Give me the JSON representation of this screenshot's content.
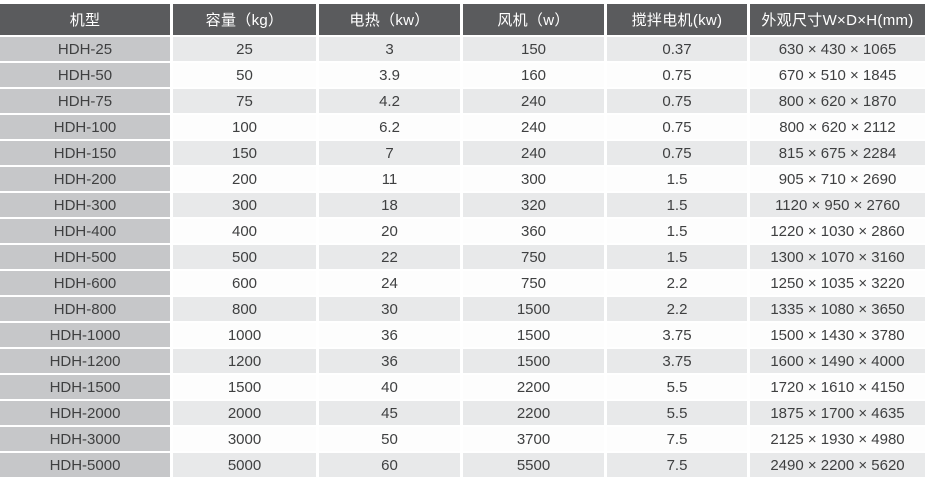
{
  "colors": {
    "header_bg": "#5a5b5d",
    "header_text": "#ffffff",
    "model_col_bg": "#c6c7c9",
    "row_odd_bg": "#e8e9ea",
    "row_even_bg": "#fdfdfd",
    "cell_text": "#3f4041",
    "page_bg": "#ffffff"
  },
  "table": {
    "columns": [
      {
        "key": "model",
        "label": "机型"
      },
      {
        "key": "capacity",
        "label": "容量（kg）"
      },
      {
        "key": "heating",
        "label": "电热（kw）"
      },
      {
        "key": "fan",
        "label": "风机（w）"
      },
      {
        "key": "motor",
        "label": "搅拌电机(kw)"
      },
      {
        "key": "dimensions",
        "label": "外观尺寸W×D×H(mm)"
      }
    ],
    "rows": [
      {
        "model": "HDH-25",
        "capacity": "25",
        "heating": "3",
        "fan": "150",
        "motor": "0.37",
        "dimensions": "630 × 430 × 1065"
      },
      {
        "model": "HDH-50",
        "capacity": "50",
        "heating": "3.9",
        "fan": "160",
        "motor": "0.75",
        "dimensions": "670 × 510 × 1845"
      },
      {
        "model": "HDH-75",
        "capacity": "75",
        "heating": "4.2",
        "fan": "240",
        "motor": "0.75",
        "dimensions": "800 × 620 × 1870"
      },
      {
        "model": "HDH-100",
        "capacity": "100",
        "heating": "6.2",
        "fan": "240",
        "motor": "0.75",
        "dimensions": "800 × 620 × 2112"
      },
      {
        "model": "HDH-150",
        "capacity": "150",
        "heating": "7",
        "fan": "240",
        "motor": "0.75",
        "dimensions": "815 × 675 × 2284"
      },
      {
        "model": "HDH-200",
        "capacity": "200",
        "heating": "11",
        "fan": "300",
        "motor": "1.5",
        "dimensions": "905 × 710 × 2690"
      },
      {
        "model": "HDH-300",
        "capacity": "300",
        "heating": "18",
        "fan": "320",
        "motor": "1.5",
        "dimensions": "1120 × 950 × 2760"
      },
      {
        "model": "HDH-400",
        "capacity": "400",
        "heating": "20",
        "fan": "360",
        "motor": "1.5",
        "dimensions": "1220 × 1030 × 2860"
      },
      {
        "model": "HDH-500",
        "capacity": "500",
        "heating": "22",
        "fan": "750",
        "motor": "1.5",
        "dimensions": "1300 × 1070 × 3160"
      },
      {
        "model": "HDH-600",
        "capacity": "600",
        "heating": "24",
        "fan": "750",
        "motor": "2.2",
        "dimensions": "1250 × 1035 × 3220"
      },
      {
        "model": "HDH-800",
        "capacity": "800",
        "heating": "30",
        "fan": "1500",
        "motor": "2.2",
        "dimensions": "1335 × 1080 × 3650"
      },
      {
        "model": "HDH-1000",
        "capacity": "1000",
        "heating": "36",
        "fan": "1500",
        "motor": "3.75",
        "dimensions": "1500 × 1430 × 3780"
      },
      {
        "model": "HDH-1200",
        "capacity": "1200",
        "heating": "36",
        "fan": "1500",
        "motor": "3.75",
        "dimensions": "1600 × 1490 × 4000"
      },
      {
        "model": "HDH-1500",
        "capacity": "1500",
        "heating": "40",
        "fan": "2200",
        "motor": "5.5",
        "dimensions": "1720 × 1610 × 4150"
      },
      {
        "model": "HDH-2000",
        "capacity": "2000",
        "heating": "45",
        "fan": "2200",
        "motor": "5.5",
        "dimensions": "1875 × 1700 × 4635"
      },
      {
        "model": "HDH-3000",
        "capacity": "3000",
        "heating": "50",
        "fan": "3700",
        "motor": "7.5",
        "dimensions": "2125 × 1930 × 4980"
      },
      {
        "model": "HDH-5000",
        "capacity": "5000",
        "heating": "60",
        "fan": "5500",
        "motor": "7.5",
        "dimensions": "2490 × 2200 × 5620"
      }
    ]
  }
}
